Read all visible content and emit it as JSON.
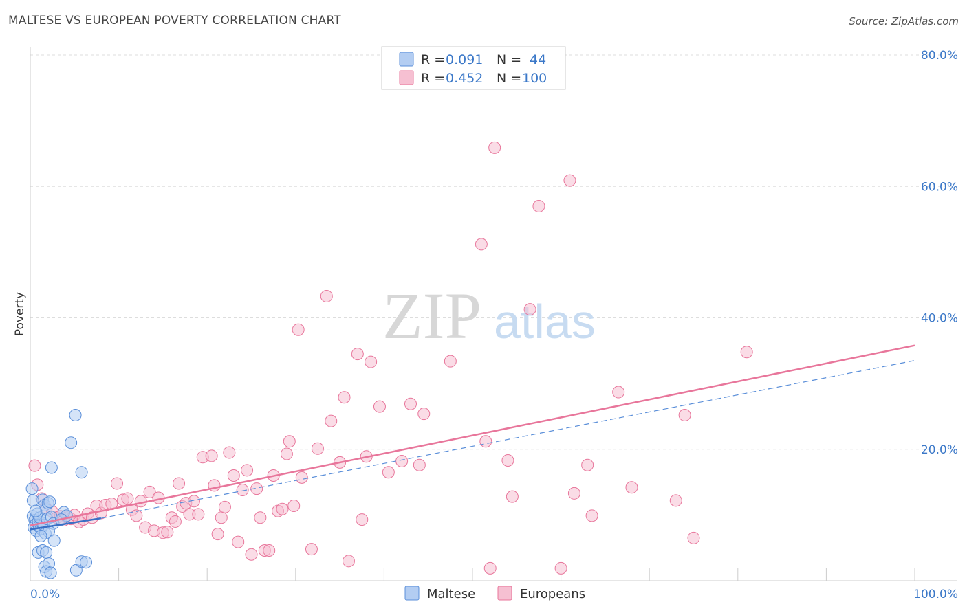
{
  "title": "MALTESE VS EUROPEAN POVERTY CORRELATION CHART",
  "source": "Source: ZipAtlas.com",
  "watermark": {
    "zip": "ZIP",
    "atlas": "atlas"
  },
  "colors": {
    "maltese": "#5b8fd9",
    "maltese_fill": "#b3cdf2",
    "europeans": "#e8769b",
    "europeans_fill": "#f6c0d2",
    "axis_text": "#3b78c8",
    "grid": "#dddddd"
  },
  "legend": {
    "rows": [
      {
        "r_label": "R =",
        "r_value": "0.091",
        "n_label": "N =",
        "n_value": "44"
      },
      {
        "r_label": "R =",
        "r_value": "0.452",
        "n_label": "N =",
        "n_value": "100"
      }
    ]
  },
  "chart_data": {
    "type": "scatter",
    "title": "MALTESE VS EUROPEAN POVERTY CORRELATION CHART",
    "xlabel": "",
    "ylabel": "Poverty",
    "xlim": [
      0,
      100
    ],
    "ylim": [
      0,
      80
    ],
    "x_tick_labels": [
      "0.0%",
      "100.0%"
    ],
    "y_ticks": [
      20,
      40,
      60,
      80
    ],
    "y_tick_labels": [
      "20.0%",
      "40.0%",
      "60.0%",
      "80.0%"
    ],
    "legend_position": "bottom",
    "series": [
      {
        "name": "Maltese",
        "R": 0.091,
        "N": 44,
        "trend": {
          "x0": 0,
          "y0": 7.8,
          "x1": 8,
          "y1": 9.5
        },
        "trend_dashed": {
          "x0": 8,
          "y0": 9.5,
          "x1": 100,
          "y1": 33.5
        },
        "points": [
          [
            0.3,
            9.8
          ],
          [
            0.5,
            9.2
          ],
          [
            0.6,
            8.6
          ],
          [
            0.4,
            8.1
          ],
          [
            0.7,
            7.6
          ],
          [
            0.9,
            9.0
          ],
          [
            1.0,
            8.3
          ],
          [
            1.2,
            7.9
          ],
          [
            1.3,
            8.8
          ],
          [
            1.5,
            8.5
          ],
          [
            0.8,
            10.2
          ],
          [
            1.1,
            9.6
          ],
          [
            1.4,
            12.3
          ],
          [
            1.6,
            11.5
          ],
          [
            1.8,
            10.8
          ],
          [
            2.0,
            11.8
          ],
          [
            2.2,
            12.0
          ],
          [
            1.9,
            9.4
          ],
          [
            2.4,
            9.7
          ],
          [
            2.6,
            8.7
          ],
          [
            1.7,
            7.2
          ],
          [
            2.1,
            7.5
          ],
          [
            1.2,
            6.8
          ],
          [
            2.7,
            6.1
          ],
          [
            0.9,
            4.3
          ],
          [
            1.4,
            4.6
          ],
          [
            1.8,
            4.3
          ],
          [
            1.6,
            2.1
          ],
          [
            2.1,
            2.6
          ],
          [
            1.8,
            1.4
          ],
          [
            2.3,
            1.2
          ],
          [
            5.2,
            1.6
          ],
          [
            5.8,
            2.9
          ],
          [
            6.3,
            2.8
          ],
          [
            2.4,
            17.2
          ],
          [
            5.8,
            16.5
          ],
          [
            4.6,
            21.0
          ],
          [
            5.1,
            25.2
          ],
          [
            0.2,
            14.0
          ],
          [
            0.3,
            12.2
          ],
          [
            3.8,
            10.4
          ],
          [
            4.1,
            9.9
          ],
          [
            3.5,
            9.3
          ],
          [
            0.6,
            10.6
          ]
        ]
      },
      {
        "name": "Europeans",
        "R": 0.452,
        "N": 100,
        "trend": {
          "x0": 0,
          "y0": 8.4,
          "x1": 100,
          "y1": 35.8
        },
        "points": [
          [
            0.5,
            17.5
          ],
          [
            0.8,
            14.6
          ],
          [
            1.3,
            12.5
          ],
          [
            1.8,
            11.0
          ],
          [
            2.5,
            10.5
          ],
          [
            3.0,
            9.6
          ],
          [
            3.4,
            9.8
          ],
          [
            3.8,
            9.2
          ],
          [
            4.2,
            9.6
          ],
          [
            4.6,
            9.4
          ],
          [
            5.0,
            10.0
          ],
          [
            5.5,
            8.9
          ],
          [
            6.0,
            9.3
          ],
          [
            6.5,
            10.2
          ],
          [
            7.0,
            9.6
          ],
          [
            7.5,
            11.4
          ],
          [
            8.0,
            10.3
          ],
          [
            8.5,
            11.5
          ],
          [
            9.2,
            11.7
          ],
          [
            9.8,
            14.8
          ],
          [
            10.5,
            12.3
          ],
          [
            11.0,
            12.5
          ],
          [
            11.5,
            10.8
          ],
          [
            12.0,
            9.9
          ],
          [
            12.5,
            12.1
          ],
          [
            13.0,
            8.1
          ],
          [
            13.5,
            13.5
          ],
          [
            14.0,
            7.6
          ],
          [
            14.5,
            12.6
          ],
          [
            15.0,
            7.3
          ],
          [
            15.5,
            7.4
          ],
          [
            16.0,
            9.6
          ],
          [
            16.4,
            9.0
          ],
          [
            16.8,
            14.8
          ],
          [
            17.2,
            11.3
          ],
          [
            17.6,
            11.8
          ],
          [
            18.0,
            10.1
          ],
          [
            18.5,
            12.1
          ],
          [
            19.0,
            10.1
          ],
          [
            19.5,
            18.8
          ],
          [
            20.5,
            19.0
          ],
          [
            20.8,
            14.5
          ],
          [
            21.2,
            7.1
          ],
          [
            21.6,
            9.6
          ],
          [
            22.0,
            11.2
          ],
          [
            22.5,
            19.5
          ],
          [
            23.0,
            16.0
          ],
          [
            23.5,
            5.9
          ],
          [
            24.0,
            13.8
          ],
          [
            24.5,
            16.8
          ],
          [
            25.0,
            4.0
          ],
          [
            25.6,
            14.0
          ],
          [
            26.0,
            9.6
          ],
          [
            26.5,
            4.6
          ],
          [
            27.0,
            4.6
          ],
          [
            27.5,
            16.0
          ],
          [
            28.0,
            10.6
          ],
          [
            28.5,
            10.9
          ],
          [
            29.0,
            19.3
          ],
          [
            29.3,
            21.2
          ],
          [
            29.8,
            11.4
          ],
          [
            30.3,
            38.2
          ],
          [
            30.7,
            15.7
          ],
          [
            31.8,
            4.8
          ],
          [
            32.5,
            20.1
          ],
          [
            33.5,
            43.3
          ],
          [
            34.0,
            24.3
          ],
          [
            35.0,
            18.0
          ],
          [
            35.5,
            27.9
          ],
          [
            36.0,
            3.0
          ],
          [
            37.0,
            34.5
          ],
          [
            37.5,
            9.3
          ],
          [
            38.0,
            18.9
          ],
          [
            38.5,
            33.3
          ],
          [
            39.5,
            26.5
          ],
          [
            40.5,
            16.5
          ],
          [
            42.0,
            18.2
          ],
          [
            43.0,
            26.9
          ],
          [
            44.0,
            17.6
          ],
          [
            44.5,
            25.4
          ],
          [
            47.5,
            33.4
          ],
          [
            51.0,
            51.2
          ],
          [
            51.5,
            21.2
          ],
          [
            52.0,
            1.9
          ],
          [
            52.5,
            65.9
          ],
          [
            54.0,
            18.3
          ],
          [
            54.5,
            12.8
          ],
          [
            56.5,
            41.3
          ],
          [
            57.5,
            57.0
          ],
          [
            60.0,
            1.9
          ],
          [
            61.0,
            60.9
          ],
          [
            61.5,
            13.3
          ],
          [
            63.0,
            17.6
          ],
          [
            63.5,
            9.9
          ],
          [
            66.5,
            28.7
          ],
          [
            68.0,
            14.2
          ],
          [
            73.0,
            12.2
          ],
          [
            74.0,
            25.2
          ],
          [
            75.0,
            6.5
          ],
          [
            81.0,
            34.8
          ]
        ]
      }
    ]
  }
}
